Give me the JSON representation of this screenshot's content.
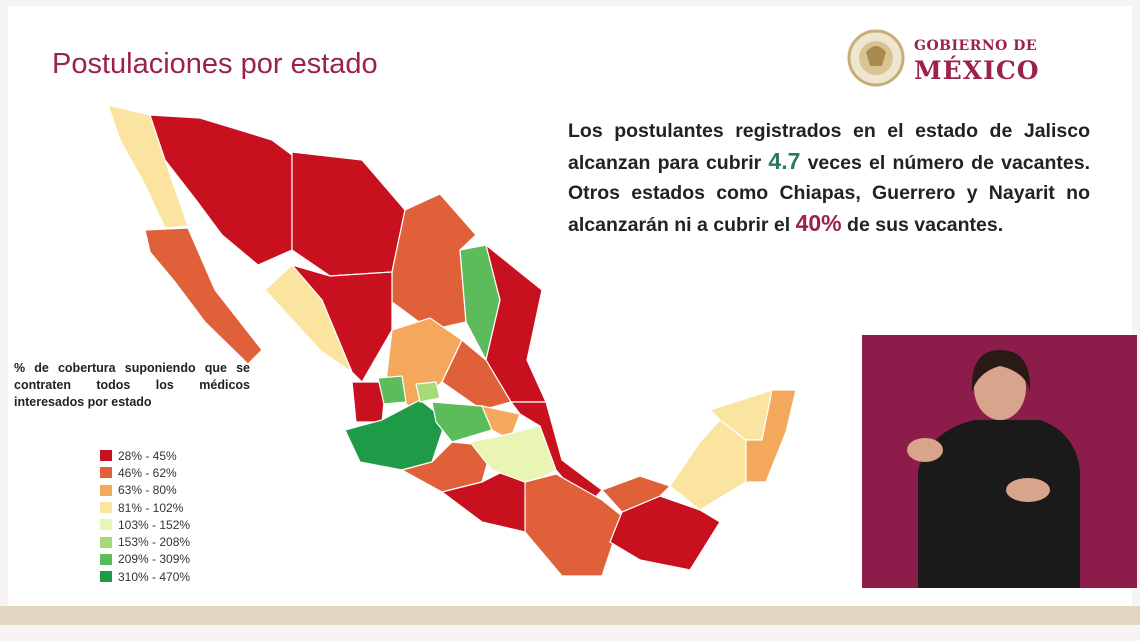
{
  "header": {
    "title": "Postulaciones por estado",
    "logo": {
      "line1": "GOBIERNO DE",
      "line2": "MÉXICO"
    }
  },
  "description": {
    "segments": [
      {
        "text": "Los postulantes registrados en el estado de Jalisco alcanzan para cubrir "
      },
      {
        "text": "4.7",
        "color": "#2b7a5c"
      },
      {
        "text": " veces el número de vacantes. Otros estados como Chiapas, Guerrero y Nayarit no alcanzarán ni a cubrir el "
      },
      {
        "text": "40%",
        "color": "#9b2248"
      },
      {
        "text": " de sus vacantes."
      }
    ]
  },
  "legend": {
    "title": "% de cobertura suponiendo que se contraten todos los médicos interesados por estado",
    "items": [
      {
        "label": "28% - 45%",
        "color": "#c8101e"
      },
      {
        "label": "46% - 62%",
        "color": "#e0603a"
      },
      {
        "label": "63% - 80%",
        "color": "#f4a85c"
      },
      {
        "label": "81% - 102%",
        "color": "#fbe4a0"
      },
      {
        "label": "103% - 152%",
        "color": "#e8f5b4"
      },
      {
        "label": "153% - 208%",
        "color": "#a6da78"
      },
      {
        "label": "209% - 309%",
        "color": "#5cbc5c"
      },
      {
        "label": "310% - 470%",
        "color": "#1f9a46"
      }
    ]
  }
}
